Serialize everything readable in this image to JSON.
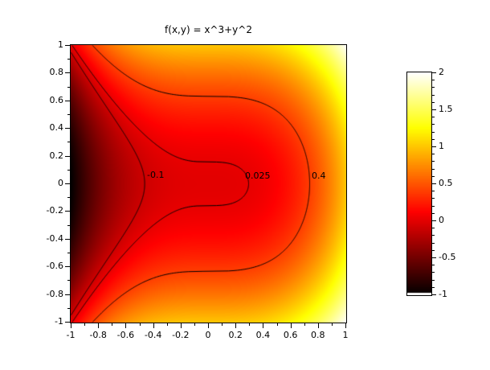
{
  "chart_data": {
    "type": "heatmap",
    "title": "f(x,y) = x^3+y^2",
    "function": "x^3+y^2",
    "x_range": [
      -1,
      1
    ],
    "y_range": [
      -1,
      1
    ],
    "z_range": [
      -1,
      2
    ],
    "grid": false,
    "colormap": "hot",
    "colormap_stops": [
      {
        "value": -1,
        "color": "#000000"
      },
      {
        "value": 0.125,
        "color": "#ff0000"
      },
      {
        "value": 1.25,
        "color": "#ffff00"
      },
      {
        "value": 2,
        "color": "#ffffff"
      }
    ],
    "contour_line_color": "#000000",
    "contours": [
      {
        "level": -0.1,
        "label": "-0.1"
      },
      {
        "level": 0.025,
        "label": "0.025"
      },
      {
        "level": 0.4,
        "label": "0.4"
      }
    ],
    "x_ticks": [
      -1,
      -0.8,
      -0.6,
      -0.4,
      -0.2,
      0,
      0.2,
      0.4,
      0.6,
      0.8,
      1
    ],
    "x_tick_labels": [
      "-1",
      "-0.8",
      "-0.6",
      "-0.4",
      "-0.2",
      "0",
      "0.2",
      "0.4",
      "0.6",
      "0.8",
      "1"
    ],
    "y_ticks": [
      1,
      0.8,
      0.6,
      0.4,
      0.2,
      0,
      -0.2,
      -0.4,
      -0.6,
      -0.8,
      -1
    ],
    "y_tick_labels": [
      "1",
      "0.8",
      "0.6",
      "0.4",
      "0.2",
      "0",
      "-0.2",
      "-0.4",
      "-0.6",
      "-0.8",
      "-1"
    ],
    "axis_minor_tick_step": 0.1,
    "colorbar": {
      "position": "right",
      "min": -1,
      "max": 2,
      "ticks": [
        2,
        1.5,
        1,
        0.5,
        0,
        -0.5,
        -1
      ],
      "tick_labels": [
        "2",
        "1.5",
        "1",
        "0.5",
        "0",
        "-0.5",
        "-1"
      ],
      "minor_tick_step": 0.1,
      "bottom_band_color": "#ffffff"
    },
    "text_color": "#000000",
    "background_color": "#ffffff"
  }
}
